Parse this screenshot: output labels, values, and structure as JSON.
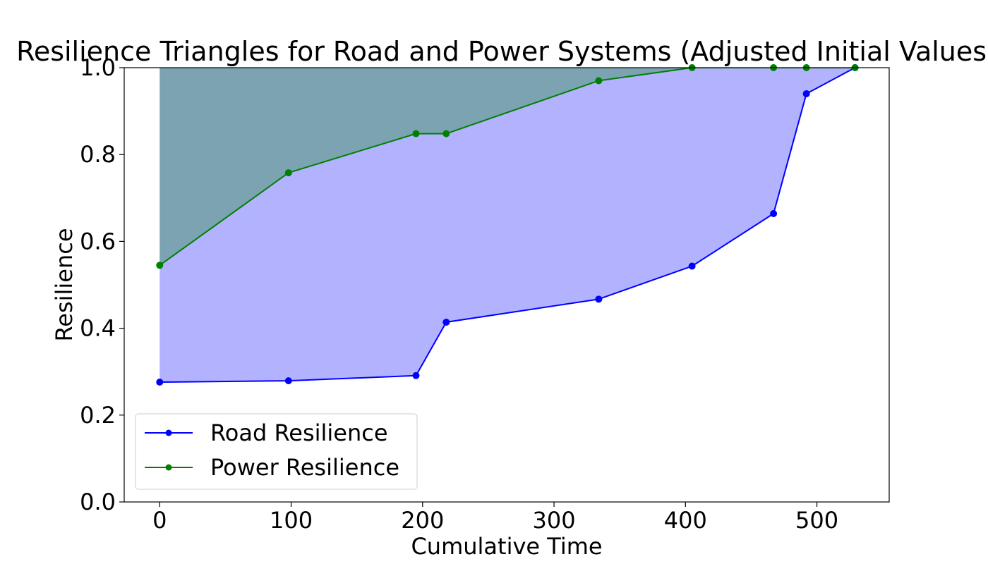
{
  "chart_data": {
    "type": "area",
    "title": "Resilience Triangles for Road and Power Systems (Adjusted Initial Values)",
    "xlabel": "Cumulative Time",
    "ylabel": "Resilience",
    "xlim": [
      -27,
      555
    ],
    "ylim": [
      0.0,
      1.0
    ],
    "x_ticks": [
      0,
      100,
      200,
      300,
      400,
      500
    ],
    "x_tick_labels": [
      "0",
      "100",
      "200",
      "300",
      "400",
      "500"
    ],
    "y_ticks": [
      0.0,
      0.2,
      0.4,
      0.6,
      0.8,
      1.0
    ],
    "y_tick_labels": [
      "0.0",
      "0.2",
      "0.4",
      "0.6",
      "0.8",
      "1.0"
    ],
    "grid": false,
    "legend_position": "lower-left",
    "fill_ceiling": 1.0,
    "series": [
      {
        "name": "Road Resilience",
        "color": "#0000ff",
        "fill_color": "#0000ff",
        "fill_opacity": 0.3,
        "x": [
          0,
          98,
          195,
          218,
          334,
          405,
          467,
          492,
          529
        ],
        "y": [
          0.276,
          0.279,
          0.291,
          0.414,
          0.467,
          0.543,
          0.664,
          0.94,
          1.0
        ]
      },
      {
        "name": "Power Resilience",
        "color": "#008000",
        "fill_color": "#008000",
        "fill_opacity": 0.3,
        "x": [
          0,
          98,
          195,
          218,
          334,
          405,
          467,
          492,
          529
        ],
        "y": [
          0.545,
          0.758,
          0.848,
          0.848,
          0.97,
          1.0,
          1.0,
          1.0,
          1.0
        ]
      }
    ]
  }
}
